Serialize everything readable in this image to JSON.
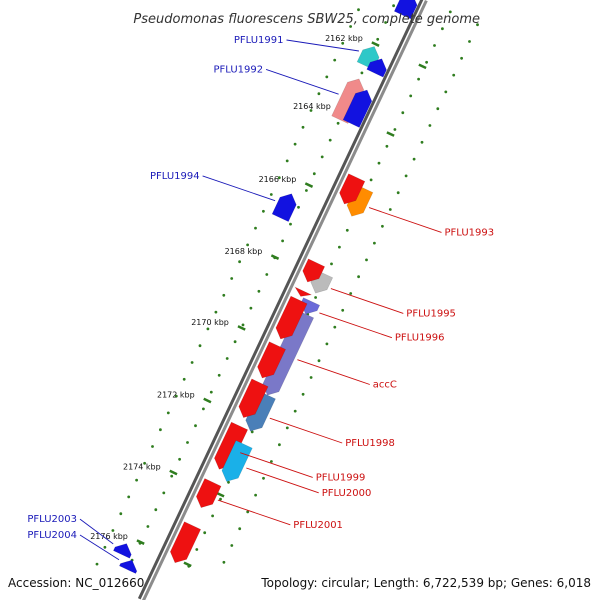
{
  "title": "Pseudomonas fluorescens SBW25, complete genome",
  "footer": {
    "accession": "Accession: NC_012660",
    "summary": "Topology: circular; Length: 6,722,539 bp; Genes: 6,018"
  },
  "colors": {
    "backbone": "#8c8c8c",
    "tick": "#2f7d1f",
    "dot": "#2f7d1f",
    "label_forward": "#1a1ab8",
    "label_reverse": "#cc1010"
  },
  "kbp_ticks": [
    "2162 kbp",
    "2164 kbp",
    "2166 kbp",
    "2168 kbp",
    "2170 kbp",
    "2172 kbp",
    "2174 kbp",
    "2176 kbp"
  ],
  "genes": [
    {
      "id": "fwd-top-1",
      "strand": "+",
      "track": 1,
      "start": 0.0,
      "end": 0.035,
      "color": "#1212e0"
    },
    {
      "id": "PFLU1991",
      "strand": "+",
      "track": 2,
      "start": 0.096,
      "end": 0.128,
      "color": "#2ec8c8",
      "label": "PFLU1991"
    },
    {
      "id": "fwd-mid-1",
      "strand": "+",
      "track": 1,
      "start": 0.108,
      "end": 0.132,
      "color": "#1212e0"
    },
    {
      "id": "PFLU1992",
      "strand": "+",
      "track": 2,
      "start": 0.15,
      "end": 0.218,
      "color": "#f08a8a",
      "label": "PFLU1992"
    },
    {
      "id": "fwd-mid-2",
      "strand": "+",
      "track": 1,
      "start": 0.16,
      "end": 0.216,
      "color": "#1212e0"
    },
    {
      "id": "PFLU1993",
      "strand": "-",
      "track": 2,
      "start": 0.296,
      "end": 0.342,
      "color": "#ff8c00",
      "label": "PFLU1993"
    },
    {
      "id": "rev-1993b",
      "strand": "-",
      "track": 1,
      "start": 0.286,
      "end": 0.33,
      "color": "#ee1111"
    },
    {
      "id": "PFLU1994",
      "strand": "+",
      "track": 3,
      "start": 0.35,
      "end": 0.39,
      "color": "#1212e0",
      "label": "PFLU1994"
    },
    {
      "id": "PFLU1995",
      "strand": "-",
      "track": 2,
      "start": 0.438,
      "end": 0.47,
      "color": "#bbbbbb",
      "label": "PFLU1995"
    },
    {
      "id": "rev-a",
      "strand": "-",
      "track": 1,
      "start": 0.428,
      "end": 0.46,
      "color": "#ee1111"
    },
    {
      "id": "rev-b",
      "strand": "-",
      "track": 1,
      "start": 0.475,
      "end": 0.484,
      "color": "#ee1111"
    },
    {
      "id": "PFLU1996",
      "strand": "-",
      "track": 2,
      "start": 0.484,
      "end": 0.505,
      "color": "#6a6ad8",
      "label": "PFLU1996"
    },
    {
      "id": "accC",
      "strand": "-",
      "track": 2,
      "start": 0.505,
      "end": 0.64,
      "color": "#7a78c8",
      "label": "accC"
    },
    {
      "id": "rev-c",
      "strand": "-",
      "track": 1,
      "start": 0.49,
      "end": 0.555,
      "color": "#ee1111"
    },
    {
      "id": "rev-d",
      "strand": "-",
      "track": 1,
      "start": 0.566,
      "end": 0.62,
      "color": "#ee1111"
    },
    {
      "id": "PFLU1998",
      "strand": "-",
      "track": 2,
      "start": 0.64,
      "end": 0.7,
      "color": "#4a7fb8",
      "label": "PFLU1998"
    },
    {
      "id": "rev-e",
      "strand": "-",
      "track": 1,
      "start": 0.628,
      "end": 0.686,
      "color": "#ee1111"
    },
    {
      "id": "PFLU1999",
      "strand": "-",
      "track": 1,
      "start": 0.7,
      "end": 0.772,
      "color": "#ee1111",
      "label": "PFLU1999"
    },
    {
      "id": "PFLU2000",
      "strand": "-",
      "track": 2,
      "start": 0.722,
      "end": 0.784,
      "color": "#1ab0e8",
      "label": "PFLU2000"
    },
    {
      "id": "PFLU2001",
      "strand": "-",
      "track": 1,
      "start": 0.794,
      "end": 0.836,
      "color": "#ee1111",
      "label": "PFLU2001"
    },
    {
      "id": "rev-f",
      "strand": "-",
      "track": 1,
      "start": 0.866,
      "end": 0.928,
      "color": "#ee1111"
    },
    {
      "id": "PFLU2003",
      "strand": "+",
      "track": 3,
      "start": 0.933,
      "end": 0.951,
      "color": "#1212e0",
      "label": "PFLU2003"
    },
    {
      "id": "PFLU2004",
      "strand": "+",
      "track": 2,
      "start": 0.952,
      "end": 0.968,
      "color": "#1212e0",
      "label": "PFLU2004"
    }
  ]
}
